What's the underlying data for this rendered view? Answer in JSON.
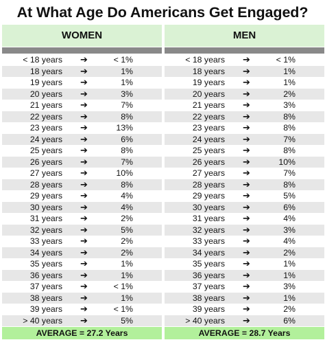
{
  "title": "At What Age Do Americans Get Engaged?",
  "arrow_glyph": "➔",
  "panels": [
    {
      "heading": "WOMEN",
      "rows": [
        {
          "age": "< 18 years",
          "pct": "< 1%"
        },
        {
          "age": "18 years",
          "pct": "1%"
        },
        {
          "age": "19 years",
          "pct": "1%"
        },
        {
          "age": "20 years",
          "pct": "3%"
        },
        {
          "age": "21 years",
          "pct": "7%"
        },
        {
          "age": "22 years",
          "pct": "8%"
        },
        {
          "age": "23 years",
          "pct": "13%"
        },
        {
          "age": "24 years",
          "pct": "6%"
        },
        {
          "age": "25 years",
          "pct": "8%"
        },
        {
          "age": "26 years",
          "pct": "7%"
        },
        {
          "age": "27 years",
          "pct": "10%"
        },
        {
          "age": "28 years",
          "pct": "8%"
        },
        {
          "age": "29 years",
          "pct": "4%"
        },
        {
          "age": "30 years",
          "pct": "4%"
        },
        {
          "age": "31 years",
          "pct": "2%"
        },
        {
          "age": "32 years",
          "pct": "5%"
        },
        {
          "age": "33 years",
          "pct": "2%"
        },
        {
          "age": "34 years",
          "pct": "2%"
        },
        {
          "age": "35 years",
          "pct": "1%"
        },
        {
          "age": "36 years",
          "pct": "1%"
        },
        {
          "age": "37 years",
          "pct": "< 1%"
        },
        {
          "age": "38 years",
          "pct": "1%"
        },
        {
          "age": "39 years",
          "pct": "< 1%"
        },
        {
          "age": "> 40 years",
          "pct": "5%"
        }
      ],
      "average": "AVERAGE = 27.2 Years"
    },
    {
      "heading": "MEN",
      "rows": [
        {
          "age": "< 18 years",
          "pct": "< 1%"
        },
        {
          "age": "18 years",
          "pct": "1%"
        },
        {
          "age": "19 years",
          "pct": "1%"
        },
        {
          "age": "20 years",
          "pct": "2%"
        },
        {
          "age": "21 years",
          "pct": "3%"
        },
        {
          "age": "22 years",
          "pct": "8%"
        },
        {
          "age": "23 years",
          "pct": "8%"
        },
        {
          "age": "24 years",
          "pct": "7%"
        },
        {
          "age": "25 years",
          "pct": "8%"
        },
        {
          "age": "26 years",
          "pct": "10%"
        },
        {
          "age": "27 years",
          "pct": "7%"
        },
        {
          "age": "28 years",
          "pct": "8%"
        },
        {
          "age": "29 years",
          "pct": "5%"
        },
        {
          "age": "30 years",
          "pct": "6%"
        },
        {
          "age": "31 years",
          "pct": "4%"
        },
        {
          "age": "32 years",
          "pct": "3%"
        },
        {
          "age": "33 years",
          "pct": "4%"
        },
        {
          "age": "34 years",
          "pct": "2%"
        },
        {
          "age": "35 years",
          "pct": "1%"
        },
        {
          "age": "36 years",
          "pct": "1%"
        },
        {
          "age": "37 years",
          "pct": "3%"
        },
        {
          "age": "38 years",
          "pct": "1%"
        },
        {
          "age": "39 years",
          "pct": "2%"
        },
        {
          "age": "> 40 years",
          "pct": "6%"
        }
      ],
      "average": "AVERAGE = 28.7 Years"
    }
  ],
  "colors": {
    "header_bg": "#daf2d4",
    "bar": "#898989",
    "row_alt": "#e7e7e7",
    "average_bg": "#b2f09b"
  }
}
